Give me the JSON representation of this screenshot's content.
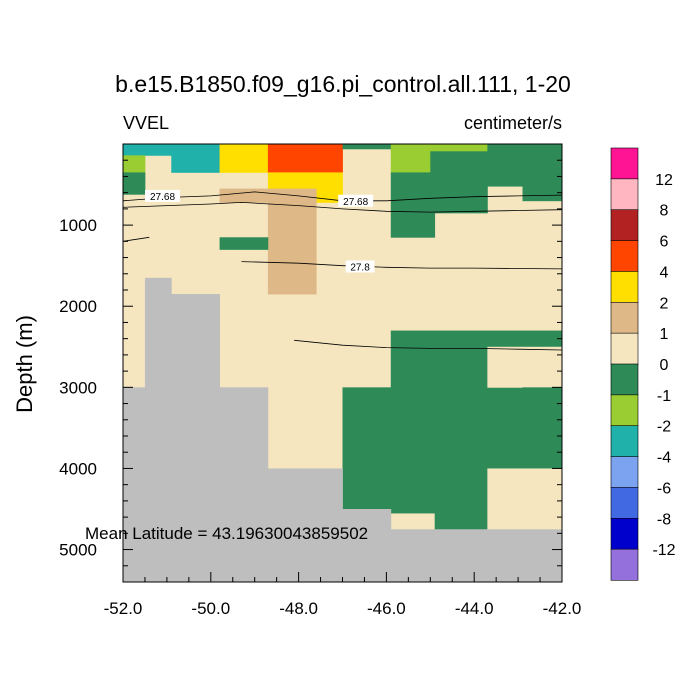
{
  "chart_data": {
    "type": "heatmap",
    "title": "b.e15.B1850.f09_g16.pi_control.all.111, 1-20",
    "left_label": "VVEL",
    "units_label": "centimeter/s",
    "ylabel": "Depth (m)",
    "xlabel": "",
    "annotation": "Mean Latitude = 43.19630043859502",
    "xlim": [
      -52.0,
      -42.0
    ],
    "ylim_depth": [
      0,
      5400
    ],
    "y_reversed": true,
    "x_ticks": [
      "-52.0",
      "-50.0",
      "-48.0",
      "-46.0",
      "-44.0",
      "-42.0"
    ],
    "x_tick_values": [
      -52,
      -50,
      -48,
      -46,
      -44,
      -42
    ],
    "y_ticks": [
      "1000",
      "2000",
      "3000",
      "4000",
      "5000"
    ],
    "y_tick_values": [
      1000,
      2000,
      3000,
      4000,
      5000
    ],
    "colorbar": {
      "labels": [
        "12",
        "8",
        "6",
        "4",
        "2",
        "1",
        "0",
        "-1",
        "-2",
        "-4",
        "-6",
        "-8",
        "-12"
      ],
      "colors": [
        "#ff1493",
        "#ffb6c1",
        "#b22222",
        "#ff4500",
        "#ffdf00",
        "#deb887",
        "#f5e6c0",
        "#2e8b57",
        "#9acd32",
        "#20b2aa",
        "#7ba3f0",
        "#4169e1",
        "#0000cd",
        "#9370db"
      ]
    },
    "land_color": "#bebebe",
    "cell_colors": {
      "gray": "#bebebe",
      "cream": "#f5e6c0",
      "green": "#2e8b57",
      "lime": "#9acd32",
      "teal": "#20b2aa",
      "yellow": "#ffdf00",
      "tan": "#deb887",
      "orange": "#ff4500"
    },
    "cells": [
      {
        "lon": [
          -52.0,
          -47.0
        ],
        "depth": [
          0,
          5400
        ],
        "c": "cream"
      },
      {
        "lon": [
          -47.0,
          -42.0
        ],
        "depth": [
          0,
          5400
        ],
        "c": "cream"
      },
      {
        "lon": [
          -52.0,
          -50.9
        ],
        "depth": [
          0,
          140
        ],
        "c": "teal"
      },
      {
        "lon": [
          -50.9,
          -49.8
        ],
        "depth": [
          0,
          350
        ],
        "c": "teal"
      },
      {
        "lon": [
          -49.8,
          -48.7
        ],
        "depth": [
          0,
          350
        ],
        "c": "yellow"
      },
      {
        "lon": [
          -48.7,
          -47.6
        ],
        "depth": [
          0,
          350
        ],
        "c": "orange"
      },
      {
        "lon": [
          -47.6,
          -47.0
        ],
        "depth": [
          0,
          140
        ],
        "c": "orange"
      },
      {
        "lon": [
          -47.6,
          -47.0
        ],
        "depth": [
          140,
          350
        ],
        "c": "orange"
      },
      {
        "lon": [
          -48.7,
          -47.6
        ],
        "depth": [
          350,
          550
        ],
        "c": "yellow"
      },
      {
        "lon": [
          -47.6,
          -47.0
        ],
        "depth": [
          350,
          720
        ],
        "c": "yellow"
      },
      {
        "lon": [
          -47.0,
          -45.9
        ],
        "depth": [
          0,
          60
        ],
        "c": "green"
      },
      {
        "lon": [
          -45.9,
          -43.7
        ],
        "depth": [
          0,
          90
        ],
        "c": "lime"
      },
      {
        "lon": [
          -45.9,
          -45.0
        ],
        "depth": [
          90,
          350
        ],
        "c": "lime"
      },
      {
        "lon": [
          -45.0,
          -43.7
        ],
        "depth": [
          90,
          350
        ],
        "c": "green"
      },
      {
        "lon": [
          -43.7,
          -42.0
        ],
        "depth": [
          0,
          350
        ],
        "c": "green"
      },
      {
        "lon": [
          -52.0,
          -51.5
        ],
        "depth": [
          140,
          350
        ],
        "c": "lime"
      },
      {
        "lon": [
          -52.0,
          -51.5
        ],
        "depth": [
          350,
          620
        ],
        "c": "green"
      },
      {
        "lon": [
          -45.9,
          -44.9
        ],
        "depth": [
          350,
          1150
        ],
        "c": "green"
      },
      {
        "lon": [
          -44.9,
          -43.7
        ],
        "depth": [
          350,
          850
        ],
        "c": "green"
      },
      {
        "lon": [
          -43.7,
          -42.9
        ],
        "depth": [
          350,
          520
        ],
        "c": "green"
      },
      {
        "lon": [
          -42.9,
          -42.0
        ],
        "depth": [
          350,
          700
        ],
        "c": "green"
      },
      {
        "lon": [
          -48.7,
          -47.6
        ],
        "depth": [
          550,
          1850
        ],
        "c": "tan"
      },
      {
        "lon": [
          -49.8,
          -48.7
        ],
        "depth": [
          550,
          720
        ],
        "c": "tan"
      },
      {
        "lon": [
          -49.8,
          -48.7
        ],
        "depth": [
          1150,
          1300
        ],
        "c": "green"
      },
      {
        "lon": [
          -45.9,
          -42.0
        ],
        "depth": [
          2300,
          4000
        ],
        "c": "green"
      },
      {
        "lon": [
          -47.0,
          -45.9
        ],
        "depth": [
          3000,
          4000
        ],
        "c": "green"
      },
      {
        "lon": [
          -47.0,
          -45.9
        ],
        "depth": [
          4000,
          4500
        ],
        "c": "green"
      },
      {
        "lon": [
          -45.9,
          -43.7
        ],
        "depth": [
          4000,
          4550
        ],
        "c": "green"
      },
      {
        "lon": [
          -44.9,
          -43.7
        ],
        "depth": [
          4550,
          4750
        ],
        "c": "green"
      },
      {
        "lon": [
          -43.7,
          -42.9
        ],
        "depth": [
          2500,
          3000
        ],
        "c": "cream"
      },
      {
        "lon": [
          -42.9,
          -42.0
        ],
        "depth": [
          2500,
          3000
        ],
        "c": "cream"
      },
      {
        "lon": [
          -42.9,
          -42.0
        ],
        "depth": [
          3000,
          4000
        ],
        "c": "green"
      },
      {
        "lon": [
          -43.7,
          -42.0
        ],
        "depth": [
          4000,
          4750
        ],
        "c": "cream"
      },
      {
        "lon": [
          -52.0,
          -50.9
        ],
        "depth": [
          3000,
          5400
        ],
        "c": "gray"
      },
      {
        "lon": [
          -51.5,
          -50.9
        ],
        "depth": [
          1650,
          3000
        ],
        "c": "gray"
      },
      {
        "lon": [
          -50.9,
          -49.8
        ],
        "depth": [
          1850,
          5400
        ],
        "c": "gray"
      },
      {
        "lon": [
          -49.8,
          -48.7
        ],
        "depth": [
          3000,
          5400
        ],
        "c": "gray"
      },
      {
        "lon": [
          -48.7,
          -47.6
        ],
        "depth": [
          4000,
          5400
        ],
        "c": "gray"
      },
      {
        "lon": [
          -47.6,
          -47.0
        ],
        "depth": [
          4000,
          5400
        ],
        "c": "gray"
      },
      {
        "lon": [
          -47.0,
          -45.9
        ],
        "depth": [
          4500,
          5400
        ],
        "c": "gray"
      },
      {
        "lon": [
          -45.9,
          -44.9
        ],
        "depth": [
          4750,
          5400
        ],
        "c": "gray"
      },
      {
        "lon": [
          -44.9,
          -42.0
        ],
        "depth": [
          4750,
          5400
        ],
        "c": "gray"
      }
    ],
    "contours": [
      {
        "label": "27.68",
        "label_at": [
          -51.1,
          640
        ],
        "points": [
          [
            -52.0,
            700
          ],
          [
            -51.0,
            660
          ],
          [
            -50.0,
            640
          ],
          [
            -49.0,
            590
          ],
          [
            -48.0,
            640
          ],
          [
            -47.0,
            700
          ],
          [
            -46.0,
            700
          ],
          [
            -45.0,
            670
          ],
          [
            -44.0,
            650
          ],
          [
            -43.0,
            640
          ],
          [
            -42.0,
            630
          ]
        ]
      },
      {
        "label": "27.68",
        "label_at": [
          -46.7,
          700
        ],
        "points": [
          [
            -52.0,
            780
          ],
          [
            -51.0,
            760
          ],
          [
            -50.0,
            740
          ],
          [
            -49.3,
            720
          ],
          [
            -48.0,
            760
          ],
          [
            -47.0,
            800
          ],
          [
            -46.0,
            830
          ],
          [
            -45.0,
            840
          ],
          [
            -44.0,
            830
          ],
          [
            -43.0,
            820
          ],
          [
            -42.0,
            810
          ]
        ]
      },
      {
        "label": "",
        "label_at": null,
        "points": [
          [
            -52.0,
            1200
          ],
          [
            -51.4,
            1150
          ]
        ]
      },
      {
        "label": "27.8",
        "label_at": [
          -46.6,
          1510
        ],
        "points": [
          [
            -49.3,
            1450
          ],
          [
            -48.0,
            1470
          ],
          [
            -47.0,
            1500
          ],
          [
            -46.0,
            1520
          ],
          [
            -45.0,
            1530
          ],
          [
            -44.0,
            1530
          ],
          [
            -43.0,
            1535
          ],
          [
            -42.0,
            1540
          ]
        ]
      },
      {
        "label": "",
        "label_at": null,
        "points": [
          [
            -48.1,
            2420
          ],
          [
            -47.0,
            2480
          ],
          [
            -46.0,
            2510
          ],
          [
            -45.0,
            2520
          ],
          [
            -44.0,
            2520
          ],
          [
            -43.0,
            2530
          ],
          [
            -42.0,
            2540
          ]
        ]
      }
    ]
  }
}
